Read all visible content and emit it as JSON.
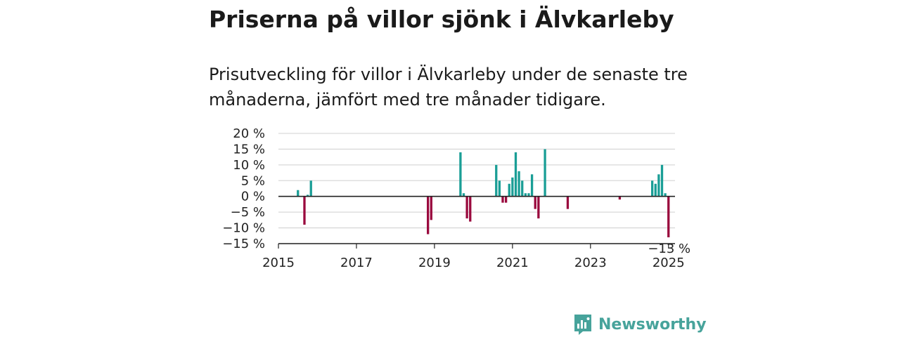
{
  "title": "Priserna på villor sjönk i Älvkarleby",
  "subtitle": "Prisutveckling för villor i Älvkarleby under de senaste tre månaderna, jämfört med tre månader tidigare.",
  "brand": {
    "name": "Newsworthy"
  },
  "colors": {
    "positive": "#1a9e96",
    "negative": "#9a0a3e",
    "grid": "#d9d9d9",
    "axis": "#222222",
    "brand": "#47a39b"
  },
  "chart_data": {
    "type": "bar",
    "title": "",
    "xlabel": "",
    "ylabel": "",
    "ylim": [
      -15,
      20
    ],
    "y_ticks": [
      20,
      15,
      10,
      5,
      0,
      -5,
      -10,
      -15
    ],
    "y_tick_labels": [
      "20 %",
      "15 %",
      "10 %",
      "5 %",
      "0 %",
      "−5 %",
      "−10 %",
      "−15 %"
    ],
    "x_range": [
      "2015-01",
      "2025-03"
    ],
    "x_ticks": [
      "2015-01",
      "2017-01",
      "2019-01",
      "2021-01",
      "2023-01",
      "2025-01"
    ],
    "x_tick_labels": [
      "2015",
      "2017",
      "2019",
      "2021",
      "2023",
      "2025"
    ],
    "grid": true,
    "annotation": {
      "x": "2025-01",
      "value": -13,
      "label": "−13 %"
    },
    "series": [
      {
        "points": [
          {
            "x": "2015-07",
            "value": 2
          },
          {
            "x": "2015-09",
            "value": -9
          },
          {
            "x": "2015-10",
            "value": 0.5
          },
          {
            "x": "2015-11",
            "value": 5
          },
          {
            "x": "2018-11",
            "value": -12
          },
          {
            "x": "2018-12",
            "value": -7.5
          },
          {
            "x": "2019-09",
            "value": 14
          },
          {
            "x": "2019-10",
            "value": 1
          },
          {
            "x": "2019-11",
            "value": -7
          },
          {
            "x": "2019-12",
            "value": -8
          },
          {
            "x": "2020-08",
            "value": 10
          },
          {
            "x": "2020-09",
            "value": 5
          },
          {
            "x": "2020-10",
            "value": -2
          },
          {
            "x": "2020-11",
            "value": -2
          },
          {
            "x": "2020-12",
            "value": 4
          },
          {
            "x": "2021-01",
            "value": 6
          },
          {
            "x": "2021-02",
            "value": 14
          },
          {
            "x": "2021-03",
            "value": 8
          },
          {
            "x": "2021-04",
            "value": 5
          },
          {
            "x": "2021-05",
            "value": 1
          },
          {
            "x": "2021-06",
            "value": 1
          },
          {
            "x": "2021-07",
            "value": 7
          },
          {
            "x": "2021-08",
            "value": -4
          },
          {
            "x": "2021-09",
            "value": -7
          },
          {
            "x": "2021-11",
            "value": 15
          },
          {
            "x": "2022-06",
            "value": -4
          },
          {
            "x": "2023-10",
            "value": -1
          },
          {
            "x": "2024-08",
            "value": 5
          },
          {
            "x": "2024-09",
            "value": 4
          },
          {
            "x": "2024-10",
            "value": 7
          },
          {
            "x": "2024-11",
            "value": 10
          },
          {
            "x": "2024-12",
            "value": 1
          },
          {
            "x": "2025-01",
            "value": -13
          }
        ]
      }
    ]
  }
}
